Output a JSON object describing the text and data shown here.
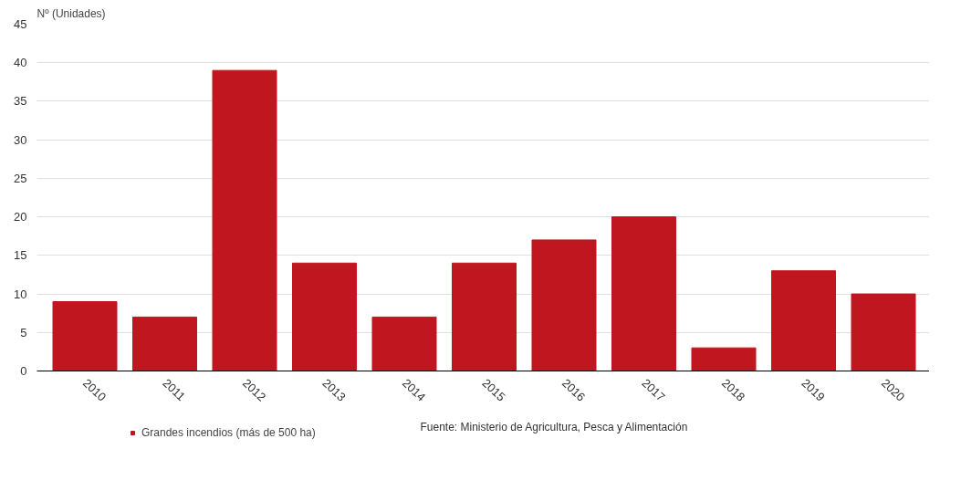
{
  "chart_data": {
    "type": "bar",
    "ylabel": "Nº (Unidades)",
    "categories": [
      "2010",
      "2011",
      "2012",
      "2013",
      "2014",
      "2015",
      "2016",
      "2017",
      "2018",
      "2019",
      "2020"
    ],
    "series": [
      {
        "name": "Grandes incendios (más de 500 ha)",
        "color": "#c0161f",
        "values": [
          9,
          7,
          39,
          14,
          7,
          14,
          17,
          20,
          3,
          13,
          10
        ]
      }
    ],
    "ylim": [
      0,
      45
    ],
    "yticks": [
      0,
      5,
      10,
      15,
      20,
      25,
      30,
      35,
      40,
      45
    ],
    "grid": "y",
    "legend": "bottom",
    "annotations": [
      "Fuente: Ministerio de Agricultura, Pesca y Alimentación"
    ]
  }
}
